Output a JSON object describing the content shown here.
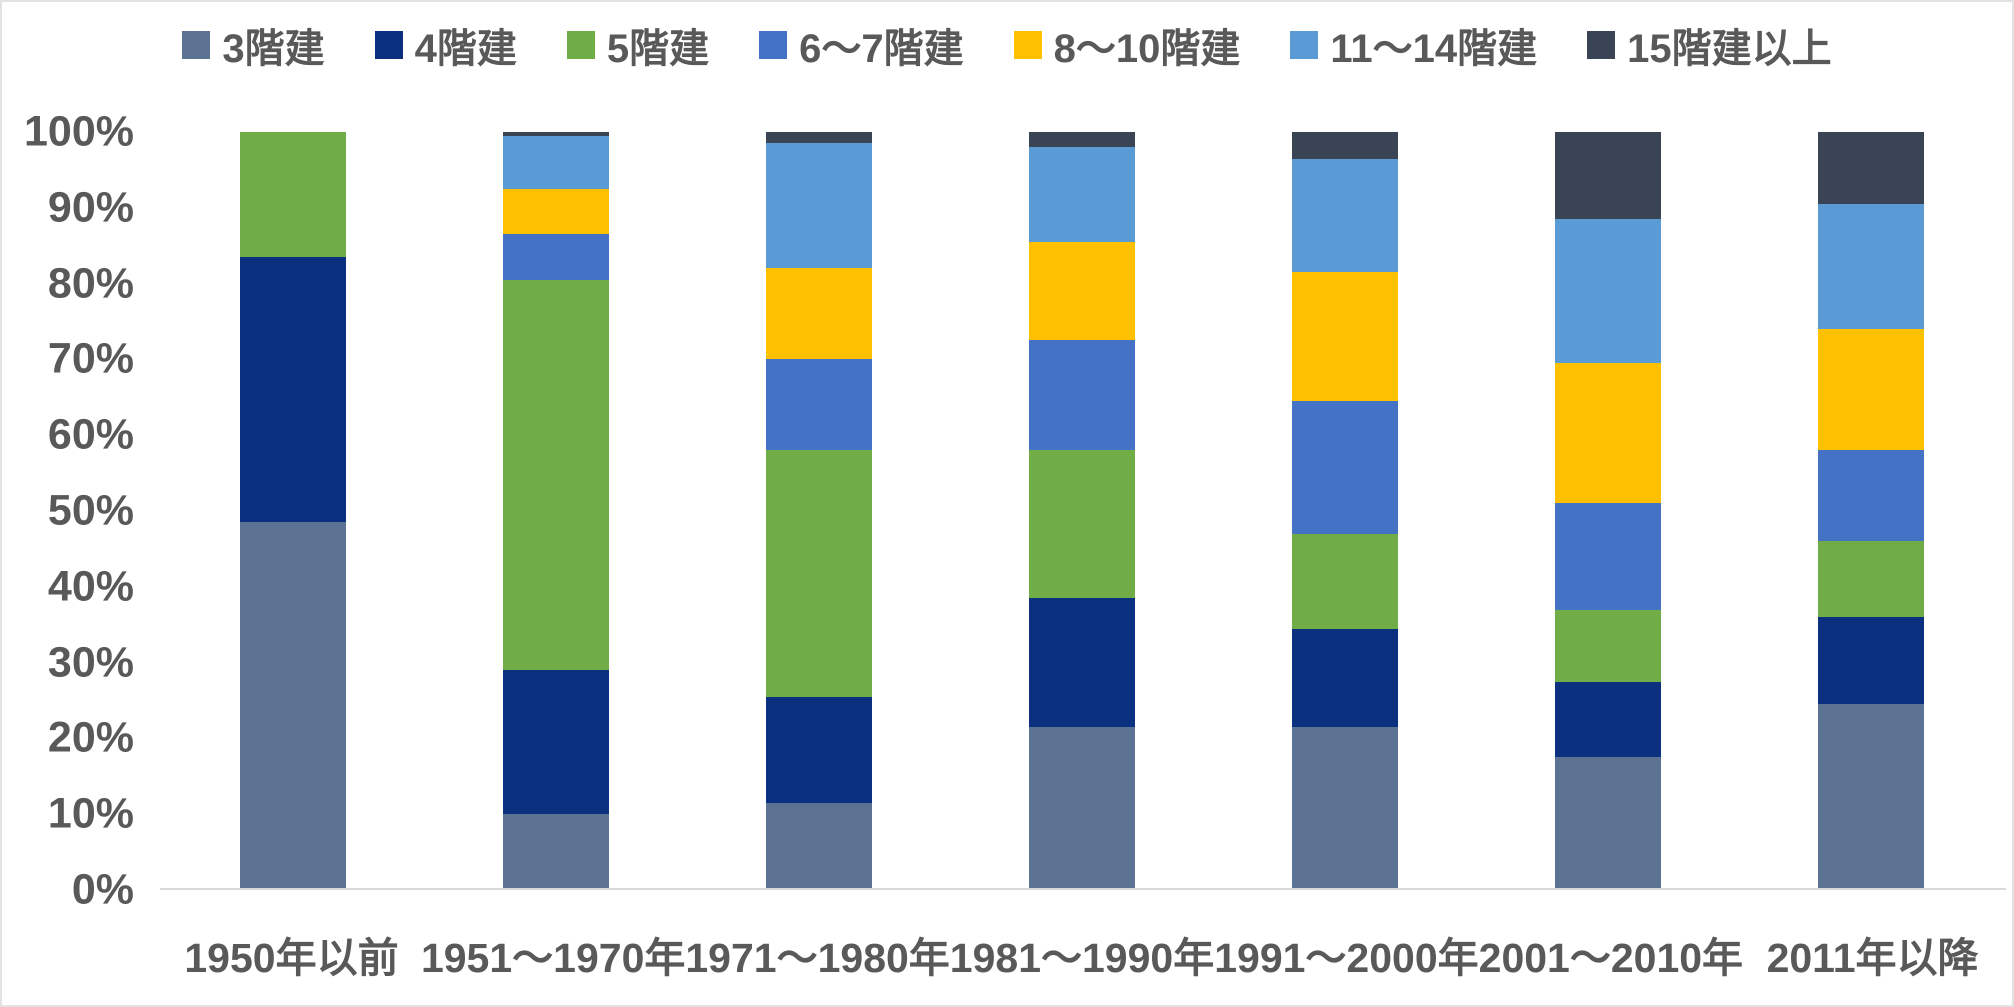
{
  "chart_data": {
    "type": "bar",
    "stacked": true,
    "percent": true,
    "title": "",
    "xlabel": "",
    "ylabel": "",
    "ylim": [
      0,
      100
    ],
    "legend_position": "top",
    "grid": false,
    "background_color": "#FFFFFF",
    "axis_text_color": "#595959",
    "baseline_color": "#D9D9D9",
    "categories": [
      "1950年以前",
      "1951〜1970年",
      "1971〜1980年",
      "1981〜1990年",
      "1991〜2000年",
      "2001〜2010年",
      "2011年以降"
    ],
    "series": [
      {
        "name": "3階建",
        "color": "#5B7292",
        "values": [
          48.5,
          10,
          11.5,
          21.5,
          21.5,
          17.5,
          24.5
        ]
      },
      {
        "name": "4階建",
        "color": "#0B3080",
        "values": [
          35,
          19,
          14,
          17,
          13,
          10,
          11.5
        ]
      },
      {
        "name": "5階建",
        "color": "#70AD47",
        "values": [
          16.5,
          51.5,
          32.5,
          19.5,
          12.5,
          9.5,
          10
        ]
      },
      {
        "name": "6〜7階建",
        "color": "#4472C4",
        "values": [
          0,
          6,
          12,
          14.5,
          17.5,
          14,
          12
        ]
      },
      {
        "name": "8〜10階建",
        "color": "#FFC000",
        "values": [
          0,
          6,
          12,
          13,
          17,
          18.5,
          16
        ]
      },
      {
        "name": "11〜14階建",
        "color": "#5B9BD5",
        "values": [
          0,
          7,
          16.5,
          12.5,
          15,
          19,
          16.5
        ]
      },
      {
        "name": "15階建以上",
        "color": "#3A4454",
        "values": [
          0,
          0.5,
          1.5,
          2,
          3.5,
          11.5,
          9.5
        ]
      }
    ],
    "yticks": [
      {
        "value": 0,
        "label": "0%"
      },
      {
        "value": 10,
        "label": "10%"
      },
      {
        "value": 20,
        "label": "20%"
      },
      {
        "value": 30,
        "label": "30%"
      },
      {
        "value": 40,
        "label": "40%"
      },
      {
        "value": 50,
        "label": "50%"
      },
      {
        "value": 60,
        "label": "60%"
      },
      {
        "value": 70,
        "label": "70%"
      },
      {
        "value": 80,
        "label": "80%"
      },
      {
        "value": 90,
        "label": "90%"
      },
      {
        "value": 100,
        "label": "100%"
      }
    ]
  }
}
